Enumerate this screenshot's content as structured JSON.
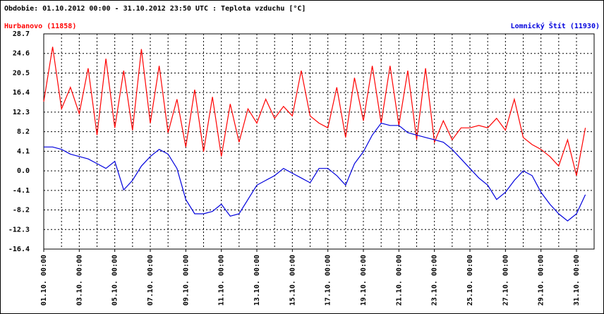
{
  "chart_data": {
    "type": "line",
    "title": "Obdobie: 01.10.2012 00:00 - 31.10.2012 23:50 UTC : Teplota vzduchu [°C]",
    "x": [
      "01.10. 00:00",
      "01.10. 12:00",
      "02.10. 00:00",
      "02.10. 12:00",
      "03.10. 00:00",
      "03.10. 12:00",
      "04.10. 00:00",
      "04.10. 12:00",
      "05.10. 00:00",
      "05.10. 12:00",
      "06.10. 00:00",
      "06.10. 12:00",
      "07.10. 00:00",
      "07.10. 12:00",
      "08.10. 00:00",
      "08.10. 12:00",
      "09.10. 00:00",
      "09.10. 12:00",
      "10.10. 00:00",
      "10.10. 12:00",
      "11.10. 00:00",
      "11.10. 12:00",
      "12.10. 00:00",
      "12.10. 12:00",
      "13.10. 00:00",
      "13.10. 12:00",
      "14.10. 00:00",
      "14.10. 12:00",
      "15.10. 00:00",
      "15.10. 12:00",
      "16.10. 00:00",
      "16.10. 12:00",
      "17.10. 00:00",
      "17.10. 12:00",
      "18.10. 00:00",
      "18.10. 12:00",
      "19.10. 00:00",
      "19.10. 12:00",
      "20.10. 00:00",
      "20.10. 12:00",
      "21.10. 00:00",
      "21.10. 12:00",
      "22.10. 00:00",
      "22.10. 12:00",
      "23.10. 00:00",
      "23.10. 12:00",
      "24.10. 00:00",
      "24.10. 12:00",
      "25.10. 00:00",
      "25.10. 12:00",
      "26.10. 00:00",
      "26.10. 12:00",
      "27.10. 00:00",
      "27.10. 12:00",
      "28.10. 00:00",
      "28.10. 12:00",
      "29.10. 00:00",
      "29.10. 12:00",
      "30.10. 00:00",
      "30.10. 12:00",
      "31.10. 00:00",
      "31.10. 12:00"
    ],
    "series": [
      {
        "name": "Hurbanovo (11858)",
        "color": "#ff0000",
        "values": [
          14.5,
          26,
          13,
          17.5,
          12,
          21.5,
          7.5,
          23.5,
          9,
          21,
          8.5,
          25.5,
          10,
          22,
          8,
          15,
          5,
          17,
          4,
          15.5,
          3,
          14,
          6,
          13,
          10,
          15,
          11,
          13.5,
          11.5,
          21,
          11.5,
          10,
          9,
          17.5,
          7,
          19.5,
          10.5,
          22,
          10,
          22,
          9.5,
          21,
          6.5,
          21.5,
          6,
          10.5,
          6.5,
          9,
          9,
          9.5,
          9,
          11,
          8.5,
          15,
          7,
          5.5,
          4.5,
          3,
          1,
          6.5,
          -1,
          9
        ]
      },
      {
        "name": "Lomnický Štít (11930)",
        "color": "#0000dd",
        "values": [
          5,
          5,
          4.5,
          3.5,
          3,
          2.5,
          1.5,
          0.5,
          2,
          -4,
          -2,
          1,
          3,
          4.5,
          3.5,
          0.5,
          -6,
          -9,
          -9,
          -8.5,
          -7,
          -9.5,
          -9,
          -6,
          -3,
          -2,
          -1,
          0.5,
          -0.5,
          -1.5,
          -2.5,
          0.5,
          0.5,
          -1,
          -3,
          1.5,
          4,
          7.5,
          10,
          9.5,
          9.5,
          8,
          7.5,
          7,
          6.5,
          6,
          4.5,
          2.5,
          0.5,
          -1.5,
          -3,
          -6,
          -4.5,
          -2,
          0,
          -1,
          -4.5,
          -7,
          -9,
          -10.5,
          -9,
          -5
        ]
      }
    ],
    "xlim": [
      "01.10. 00:00",
      "31.10. 23:50"
    ],
    "xticks": [
      "01.10. 00:00",
      "03.10. 00:00",
      "05.10. 00:00",
      "07.10. 00:00",
      "09.10. 00:00",
      "11.10. 00:00",
      "13.10. 00:00",
      "15.10. 00:00",
      "17.10. 00:00",
      "19.10. 00:00",
      "21.10. 00:00",
      "23.10. 00:00",
      "25.10. 00:00",
      "27.10. 00:00",
      "29.10. 00:00",
      "31.10. 00:00"
    ],
    "ylim": [
      -16.4,
      28.7
    ],
    "yticks": [
      28.7,
      24.6,
      20.5,
      16.4,
      12.3,
      8.2,
      4.1,
      {
        "value": 0,
        "label": "0.0"
      },
      -4.1,
      -8.2,
      -12.3,
      -16.4
    ],
    "grid": true
  }
}
